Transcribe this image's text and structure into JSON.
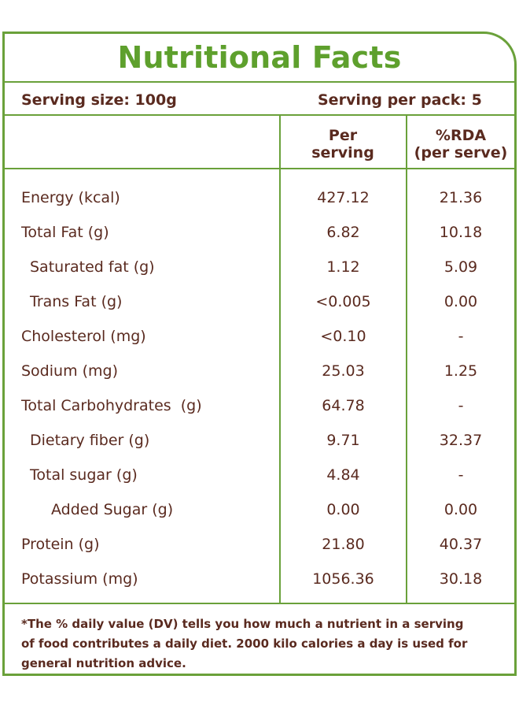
{
  "title": "Nutritional Facts",
  "serving": {
    "size": "Serving size: 100g",
    "per_pack": "Serving per pack: 5"
  },
  "columns": {
    "per_serving_line1": "Per",
    "per_serving_line2": "serving",
    "rda_line1": "%RDA",
    "rda_line2": "(per serve)"
  },
  "rows": [
    {
      "name": "Energy (kcal)",
      "per_serving": "427.12",
      "rda": "21.36"
    },
    {
      "name": "Total Fat (g)",
      "per_serving": "6.82",
      "rda": "10.18"
    },
    {
      "name": "Saturated fat (g)",
      "per_serving": "1.12",
      "rda": "5.09"
    },
    {
      "name": "Trans Fat (g)",
      "per_serving": "<0.005",
      "rda": "0.00"
    },
    {
      "name": "Cholesterol (mg)",
      "per_serving": "<0.10",
      "rda": "-"
    },
    {
      "name": "Sodium (mg)",
      "per_serving": "25.03",
      "rda": "1.25"
    },
    {
      "name": "Total Carbohydrates  (g)",
      "per_serving": "64.78",
      "rda": "-"
    },
    {
      "name": "Dietary fiber (g)",
      "per_serving": "9.71",
      "rda": "32.37"
    },
    {
      "name": "Total sugar (g)",
      "per_serving": "4.84",
      "rda": "-"
    },
    {
      "name": "Added Sugar (g)",
      "per_serving": "0.00",
      "rda": "0.00"
    },
    {
      "name": "Protein (g)",
      "per_serving": "21.80",
      "rda": "40.37"
    },
    {
      "name": "Potassium (mg)",
      "per_serving": "1056.36",
      "rda": "30.18"
    }
  ],
  "footnote": {
    "line1": "*The % daily value (DV) tells you how much a nutrient in a serving",
    "line2": "of food contributes a daily diet. 2000 kilo calories a day is used for",
    "line3": "general nutrition advice."
  },
  "colors": {
    "border": "#6aa13a",
    "title": "#5ea02d",
    "text": "#5a2a1f"
  }
}
